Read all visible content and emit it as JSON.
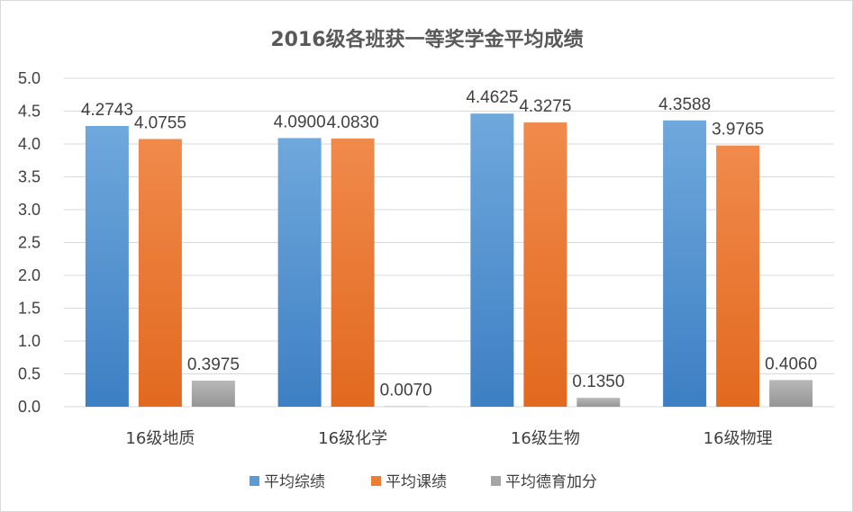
{
  "chart_data": {
    "type": "bar",
    "title": "2016级各班获一等奖学金平均成绩",
    "categories": [
      "16级地质",
      "16级化学",
      "16级生物",
      "16级物理"
    ],
    "series": [
      {
        "name": "平均综绩",
        "values": [
          4.2743,
          4.09,
          4.4625,
          4.3588
        ],
        "labels": [
          "4.2743",
          "4.0900",
          "4.4625",
          "4.3588"
        ],
        "color": "#5b9bd5"
      },
      {
        "name": "平均课绩",
        "values": [
          4.0755,
          4.083,
          4.3275,
          3.9765
        ],
        "labels": [
          "4.0755",
          "4.0830",
          "4.3275",
          "3.9765"
        ],
        "color": "#ed7d31"
      },
      {
        "name": "平均德育加分",
        "values": [
          0.3975,
          0.007,
          0.135,
          0.406
        ],
        "labels": [
          "0.3975",
          "0.0070",
          "0.1350",
          "0.4060"
        ],
        "color": "#a5a5a5"
      }
    ],
    "ylim": [
      0,
      5.0
    ],
    "yticks": [
      "0.0",
      "0.5",
      "1.0",
      "1.5",
      "2.0",
      "2.5",
      "3.0",
      "3.5",
      "4.0",
      "4.5",
      "5.0"
    ],
    "xlabel": "",
    "ylabel": "",
    "grid": true,
    "legend": "bottom"
  }
}
